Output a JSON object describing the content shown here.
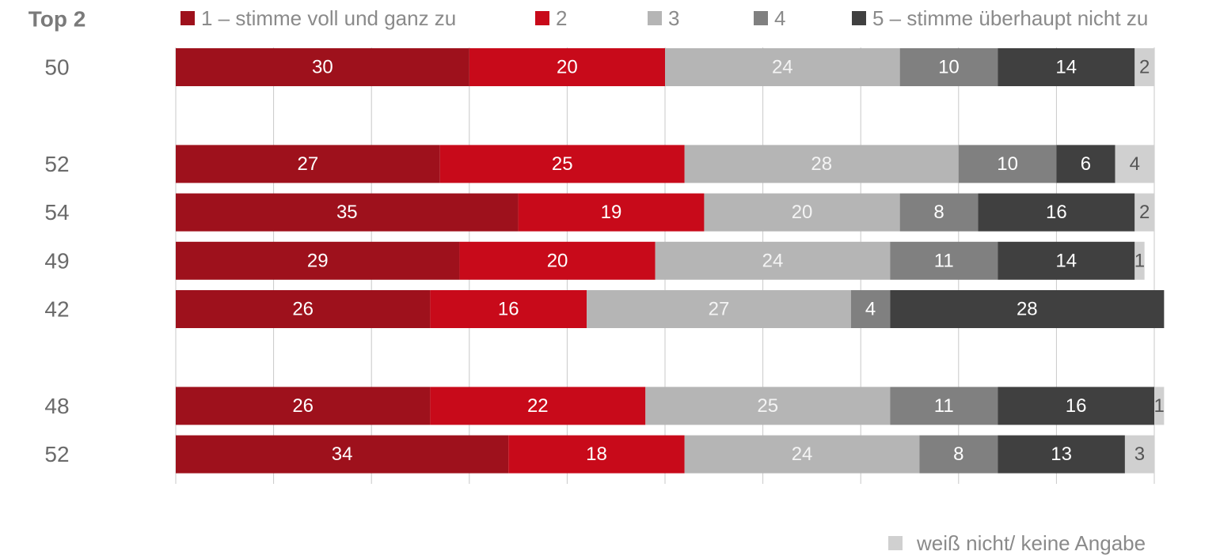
{
  "chart_data": {
    "type": "stacked-bar-horizontal",
    "top2_header": "Top 2",
    "top2": [
      50,
      52,
      54,
      49,
      42,
      48,
      52
    ],
    "categories": [
      null,
      null,
      null,
      null,
      null,
      null,
      null
    ],
    "xlim": [
      0,
      100
    ],
    "xticks": [
      0,
      10,
      20,
      30,
      40,
      50,
      60,
      70,
      80,
      90,
      100
    ],
    "grid": true,
    "series": [
      {
        "name": "1 – stimme voll und ganz zu",
        "color": "#9e111c",
        "values": [
          30,
          27,
          35,
          29,
          26,
          26,
          34
        ]
      },
      {
        "name": "2",
        "color": "#c80a1a",
        "values": [
          20,
          25,
          19,
          20,
          16,
          22,
          18
        ]
      },
      {
        "name": "3",
        "color": "#b5b5b5",
        "values": [
          24,
          28,
          20,
          24,
          27,
          25,
          24
        ]
      },
      {
        "name": "4",
        "color": "#808080",
        "values": [
          10,
          10,
          8,
          11,
          4,
          11,
          8
        ]
      },
      {
        "name": "5 – stimme überhaupt nicht zu",
        "color": "#404040",
        "values": [
          14,
          6,
          16,
          14,
          28,
          16,
          13
        ]
      },
      {
        "name": "weiß nicht/ keine Angabe",
        "color": "#d0d0d0",
        "values": [
          2,
          4,
          2,
          1,
          null,
          1,
          3
        ]
      }
    ]
  }
}
